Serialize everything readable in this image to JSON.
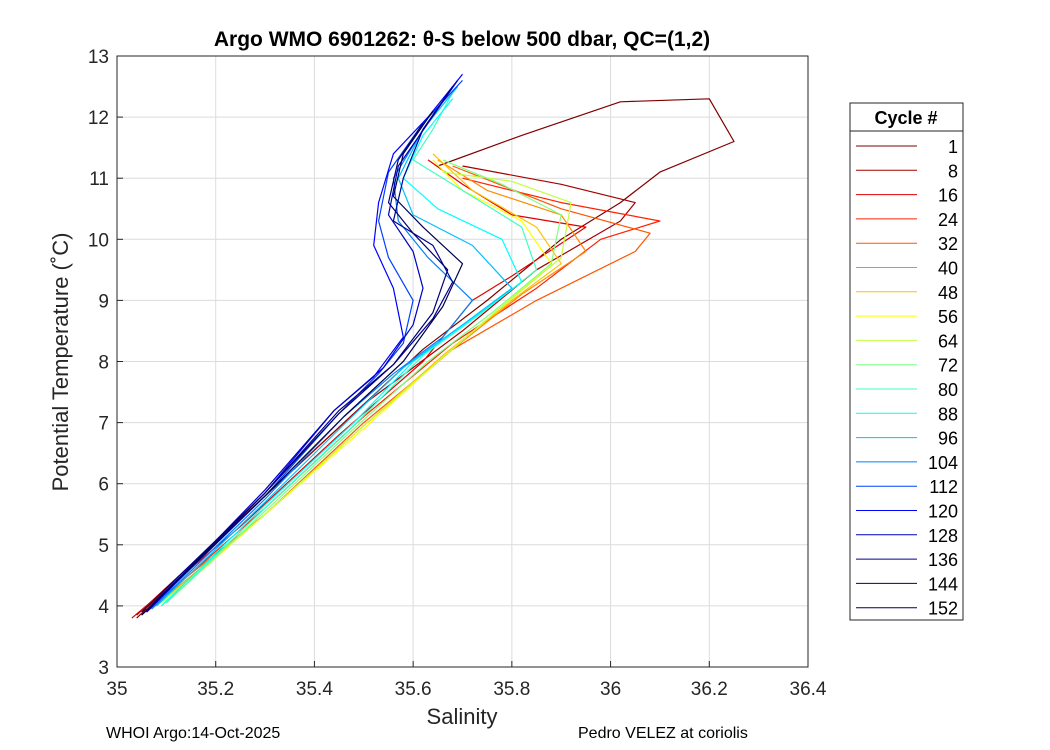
{
  "chart_data": {
    "type": "line",
    "title": "Argo WMO 6901262: θ-S below 500 dbar,  QC=(1,2)",
    "xlabel": "Salinity",
    "ylabel": "Potential Temperature (˚C)",
    "xlim": [
      35,
      36.4
    ],
    "ylim": [
      3,
      13
    ],
    "xticks": [
      35,
      35.2,
      35.4,
      35.6,
      35.8,
      36,
      36.2,
      36.4
    ],
    "xtick_labels": [
      "35",
      "35.2",
      "35.4",
      "35.6",
      "35.8",
      "36",
      "36.2",
      "36.4"
    ],
    "yticks": [
      3,
      4,
      5,
      6,
      7,
      8,
      9,
      10,
      11,
      12,
      13
    ],
    "ytick_labels": [
      "3",
      "4",
      "5",
      "6",
      "7",
      "8",
      "9",
      "10",
      "11",
      "12",
      "13"
    ],
    "grid": true,
    "legend_title": "Cycle #",
    "legend_position": "outside-right",
    "series": [
      {
        "name": "1",
        "color": "#800000",
        "points": [
          [
            35.04,
            3.8
          ],
          [
            35.3,
            5.8
          ],
          [
            35.5,
            7.3
          ],
          [
            35.62,
            8.2
          ],
          [
            35.75,
            9.0
          ],
          [
            35.9,
            10.0
          ],
          [
            36.02,
            10.6
          ],
          [
            36.1,
            11.1
          ],
          [
            36.25,
            11.6
          ],
          [
            36.2,
            12.3
          ],
          [
            36.02,
            12.25
          ],
          [
            35.82,
            11.7
          ],
          [
            35.65,
            11.2
          ]
        ]
      },
      {
        "name": "8",
        "color": "#a50000",
        "points": [
          [
            35.04,
            3.85
          ],
          [
            35.3,
            5.8
          ],
          [
            35.5,
            7.3
          ],
          [
            35.7,
            8.5
          ],
          [
            35.85,
            9.5
          ],
          [
            36.02,
            10.3
          ],
          [
            36.05,
            10.6
          ],
          [
            35.9,
            10.9
          ],
          [
            35.7,
            11.2
          ]
        ]
      },
      {
        "name": "16",
        "color": "#e00000",
        "points": [
          [
            35.03,
            3.8
          ],
          [
            35.25,
            5.3
          ],
          [
            35.45,
            6.8
          ],
          [
            35.62,
            8.0
          ],
          [
            35.72,
            9.0
          ],
          [
            35.8,
            9.4
          ],
          [
            35.95,
            10.2
          ],
          [
            35.8,
            10.4
          ],
          [
            35.7,
            10.9
          ],
          [
            35.63,
            11.3
          ]
        ]
      },
      {
        "name": "24",
        "color": "#ff2000",
        "points": [
          [
            35.06,
            3.9
          ],
          [
            35.3,
            5.6
          ],
          [
            35.5,
            7.1
          ],
          [
            35.68,
            8.3
          ],
          [
            35.85,
            9.2
          ],
          [
            35.98,
            10.0
          ],
          [
            36.1,
            10.3
          ],
          [
            35.9,
            10.6
          ],
          [
            35.7,
            11.0
          ]
        ]
      },
      {
        "name": "32",
        "color": "#ff5500",
        "points": [
          [
            35.06,
            3.95
          ],
          [
            35.3,
            5.5
          ],
          [
            35.5,
            7.0
          ],
          [
            35.68,
            8.2
          ],
          [
            35.85,
            9.0
          ],
          [
            36.05,
            9.8
          ],
          [
            36.08,
            10.1
          ],
          [
            35.9,
            10.5
          ],
          [
            35.68,
            11.2
          ]
        ]
      },
      {
        "name": "40",
        "color": "#ff8a00",
        "points": [
          [
            35.07,
            3.95
          ],
          [
            35.3,
            5.5
          ],
          [
            35.5,
            6.95
          ],
          [
            35.68,
            8.2
          ],
          [
            35.82,
            9.1
          ],
          [
            35.95,
            9.8
          ],
          [
            35.9,
            10.4
          ],
          [
            35.75,
            10.8
          ],
          [
            35.65,
            11.3
          ]
        ]
      },
      {
        "name": "48",
        "color": "#ffc000",
        "points": [
          [
            35.08,
            4.0
          ],
          [
            35.3,
            5.5
          ],
          [
            35.5,
            6.95
          ],
          [
            35.66,
            8.1
          ],
          [
            35.8,
            9.0
          ],
          [
            35.9,
            9.6
          ],
          [
            35.85,
            10.2
          ],
          [
            35.72,
            10.8
          ],
          [
            35.64,
            11.4
          ]
        ]
      },
      {
        "name": "56",
        "color": "#ffff00",
        "points": [
          [
            35.09,
            4.0
          ],
          [
            35.3,
            5.5
          ],
          [
            35.5,
            6.9
          ],
          [
            35.65,
            8.0
          ],
          [
            35.78,
            8.9
          ],
          [
            35.88,
            9.6
          ],
          [
            35.82,
            10.3
          ],
          [
            35.7,
            10.8
          ],
          [
            35.64,
            11.3
          ]
        ]
      },
      {
        "name": "64",
        "color": "#c0ff40",
        "points": [
          [
            35.09,
            4.05
          ],
          [
            35.3,
            5.5
          ],
          [
            35.5,
            6.95
          ],
          [
            35.65,
            8.0
          ],
          [
            35.78,
            8.9
          ],
          [
            35.9,
            9.7
          ],
          [
            35.92,
            10.6
          ],
          [
            35.8,
            10.95
          ],
          [
            35.66,
            11.1
          ]
        ]
      },
      {
        "name": "72",
        "color": "#80ff80",
        "points": [
          [
            35.1,
            4.05
          ],
          [
            35.3,
            5.55
          ],
          [
            35.48,
            6.9
          ],
          [
            35.63,
            8.0
          ],
          [
            35.76,
            8.8
          ],
          [
            35.88,
            9.6
          ],
          [
            35.9,
            10.4
          ],
          [
            35.78,
            10.9
          ],
          [
            35.66,
            11.3
          ]
        ]
      },
      {
        "name": "80",
        "color": "#40ffc0",
        "points": [
          [
            35.1,
            4.05
          ],
          [
            35.3,
            5.6
          ],
          [
            35.48,
            6.95
          ],
          [
            35.62,
            8.1
          ],
          [
            35.74,
            8.8
          ],
          [
            35.85,
            9.5
          ],
          [
            35.82,
            10.2
          ],
          [
            35.7,
            10.8
          ],
          [
            35.6,
            11.3
          ],
          [
            35.64,
            11.8
          ],
          [
            35.68,
            12.4
          ]
        ]
      },
      {
        "name": "88",
        "color": "#00ffff",
        "points": [
          [
            35.09,
            4.0
          ],
          [
            35.3,
            5.65
          ],
          [
            35.48,
            7.0
          ],
          [
            35.6,
            8.0
          ],
          [
            35.72,
            8.7
          ],
          [
            35.82,
            9.3
          ],
          [
            35.78,
            10.0
          ],
          [
            35.65,
            10.5
          ],
          [
            35.58,
            11.0
          ],
          [
            35.62,
            11.7
          ],
          [
            35.68,
            12.3
          ]
        ]
      },
      {
        "name": "96",
        "color": "#00c0ff",
        "points": [
          [
            35.08,
            4.0
          ],
          [
            35.3,
            5.7
          ],
          [
            35.47,
            7.05
          ],
          [
            35.58,
            7.9
          ],
          [
            35.7,
            8.6
          ],
          [
            35.8,
            9.2
          ],
          [
            35.72,
            9.9
          ],
          [
            35.6,
            10.4
          ],
          [
            35.57,
            11.0
          ],
          [
            35.62,
            11.8
          ],
          [
            35.69,
            12.5
          ]
        ]
      },
      {
        "name": "104",
        "color": "#0080ff",
        "points": [
          [
            35.07,
            3.95
          ],
          [
            35.3,
            5.75
          ],
          [
            35.46,
            7.1
          ],
          [
            35.56,
            7.8
          ],
          [
            35.66,
            8.4
          ],
          [
            35.72,
            9.0
          ],
          [
            35.63,
            9.7
          ],
          [
            35.57,
            10.3
          ],
          [
            35.56,
            11.0
          ],
          [
            35.62,
            11.8
          ],
          [
            35.69,
            12.6
          ]
        ]
      },
      {
        "name": "112",
        "color": "#0040ff",
        "points": [
          [
            35.06,
            3.9
          ],
          [
            35.3,
            5.8
          ],
          [
            35.45,
            7.15
          ],
          [
            35.53,
            7.8
          ],
          [
            35.58,
            8.3
          ],
          [
            35.6,
            9.0
          ],
          [
            35.55,
            9.7
          ],
          [
            35.53,
            10.3
          ],
          [
            35.55,
            11.1
          ],
          [
            35.62,
            11.9
          ],
          [
            35.7,
            12.6
          ]
        ]
      },
      {
        "name": "120",
        "color": "#0000ff",
        "points": [
          [
            35.06,
            3.9
          ],
          [
            35.3,
            5.85
          ],
          [
            35.44,
            7.2
          ],
          [
            35.52,
            7.75
          ],
          [
            35.58,
            8.4
          ],
          [
            35.56,
            9.2
          ],
          [
            35.52,
            9.9
          ],
          [
            35.53,
            10.6
          ],
          [
            35.56,
            11.4
          ],
          [
            35.63,
            12.0
          ],
          [
            35.7,
            12.7
          ]
        ]
      },
      {
        "name": "128",
        "color": "#0000c0",
        "points": [
          [
            35.06,
            3.9
          ],
          [
            35.3,
            5.9
          ],
          [
            35.44,
            7.2
          ],
          [
            35.54,
            7.9
          ],
          [
            35.6,
            8.6
          ],
          [
            35.62,
            9.2
          ],
          [
            35.6,
            9.8
          ],
          [
            35.55,
            10.4
          ],
          [
            35.57,
            11.2
          ],
          [
            35.63,
            11.9
          ],
          [
            35.69,
            12.6
          ]
        ]
      },
      {
        "name": "136",
        "color": "#000090",
        "points": [
          [
            35.05,
            3.9
          ],
          [
            35.3,
            5.85
          ],
          [
            35.45,
            7.2
          ],
          [
            35.56,
            7.95
          ],
          [
            35.64,
            8.7
          ],
          [
            35.68,
            9.3
          ],
          [
            35.64,
            9.9
          ],
          [
            35.56,
            10.3
          ],
          [
            35.58,
            11.0
          ],
          [
            35.62,
            11.8
          ],
          [
            35.68,
            12.5
          ]
        ]
      },
      {
        "name": "144",
        "color": "#000070",
        "points": [
          [
            35.05,
            3.85
          ],
          [
            35.3,
            5.85
          ],
          [
            35.45,
            7.15
          ],
          [
            35.56,
            7.95
          ],
          [
            35.64,
            8.8
          ],
          [
            35.67,
            9.5
          ],
          [
            35.6,
            10.1
          ],
          [
            35.55,
            10.6
          ],
          [
            35.57,
            11.3
          ],
          [
            35.62,
            11.9
          ]
        ]
      },
      {
        "name": "152",
        "color": "#000050",
        "points": [
          [
            35.05,
            3.85
          ],
          [
            35.3,
            5.8
          ],
          [
            35.46,
            7.1
          ],
          [
            35.58,
            8.0
          ],
          [
            35.66,
            8.9
          ],
          [
            35.7,
            9.6
          ],
          [
            35.62,
            10.2
          ],
          [
            35.56,
            10.7
          ],
          [
            35.58,
            11.4
          ],
          [
            35.64,
            12.1
          ]
        ]
      }
    ]
  },
  "footer": {
    "left": "WHOI Argo:14-Oct-2025",
    "right": "Pedro VELEZ at coriolis"
  }
}
